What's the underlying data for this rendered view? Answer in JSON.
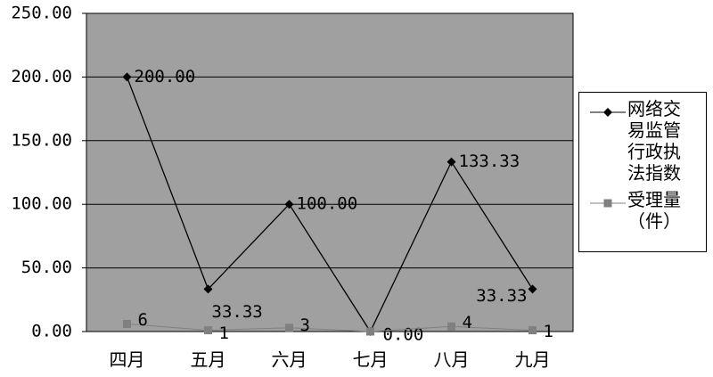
{
  "chart_data": {
    "type": "line",
    "categories": [
      "四月",
      "五月",
      "六月",
      "七月",
      "八月",
      "九月"
    ],
    "series": [
      {
        "name": "网络交易监管行政执法指数",
        "color": "#000000",
        "marker": "diamond",
        "values": [
          200,
          33.33,
          100,
          0,
          133.33,
          33.33
        ],
        "value_labels": [
          "200.00",
          "33.33",
          "100.00",
          "0.00",
          "133.33",
          "33.33"
        ]
      },
      {
        "name": "受理量（件）",
        "color": "#808080",
        "marker": "square",
        "values": [
          6,
          1,
          3,
          0,
          4,
          1
        ],
        "value_labels": [
          "6",
          "1",
          "3",
          null,
          "4",
          "1"
        ]
      }
    ],
    "ylim": [
      0,
      250
    ],
    "yticks": [
      {
        "value": 0,
        "label": "0.00"
      },
      {
        "value": 50,
        "label": "50.00"
      },
      {
        "value": 100,
        "label": "100.00"
      },
      {
        "value": 150,
        "label": "150.00"
      },
      {
        "value": 200,
        "label": "200.00"
      },
      {
        "value": 250,
        "label": "250.00"
      }
    ],
    "grid": true,
    "legend": "right"
  }
}
